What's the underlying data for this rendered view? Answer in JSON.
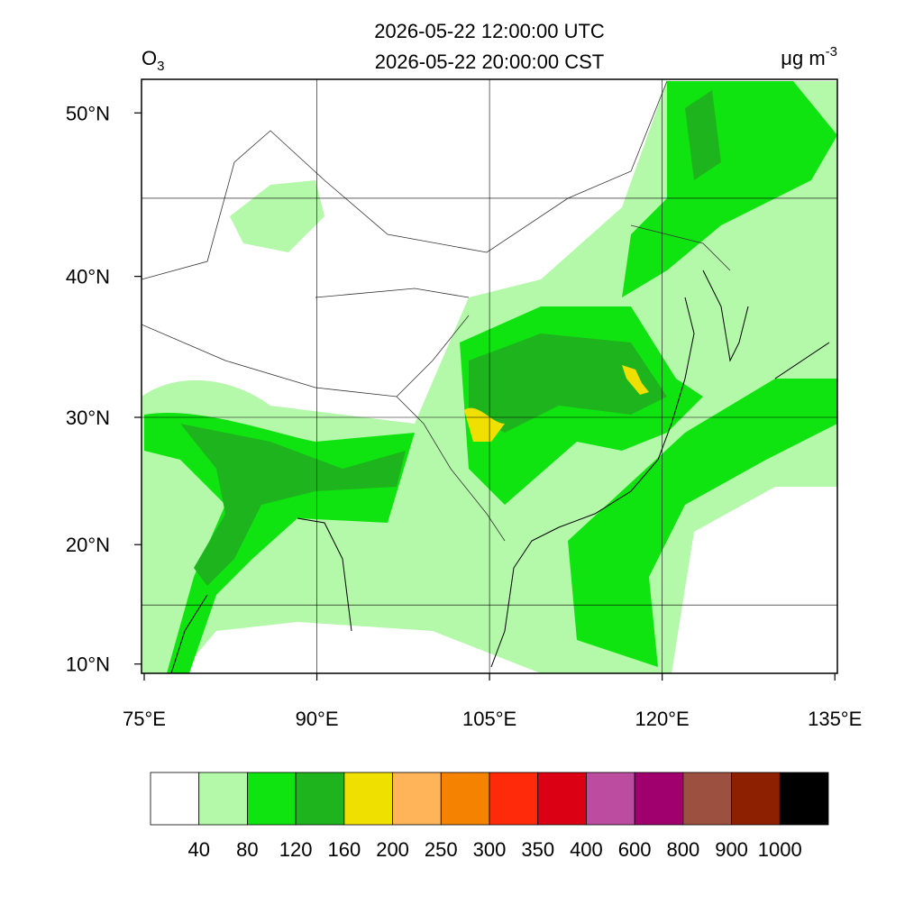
{
  "header": {
    "title_lines": [
      "2026-05-22 12:00:00 UTC",
      "2026-05-22 20:00:00 CST"
    ],
    "variable": {
      "symbol": "O",
      "subscript": "3"
    },
    "units": {
      "text": "μg m",
      "superscript": "-3"
    }
  },
  "map": {
    "lat_ticks": [
      {
        "value": 50,
        "label": "50°N"
      },
      {
        "value": 40,
        "label": "40°N"
      },
      {
        "value": 30,
        "label": "30°N"
      },
      {
        "value": 20,
        "label": "20°N"
      },
      {
        "value": 10,
        "label": "10°N"
      }
    ],
    "lon_ticks": [
      {
        "value": 75,
        "label": "75°E"
      },
      {
        "value": 90,
        "label": "90°E"
      },
      {
        "value": 105,
        "label": "105°E"
      },
      {
        "value": 120,
        "label": "120°E"
      },
      {
        "value": 135,
        "label": "135°E"
      }
    ],
    "grid": {
      "lat": [
        15,
        30,
        45
      ],
      "lon": [
        90,
        105,
        120
      ]
    }
  },
  "colorbar": {
    "colors": [
      "#ffffff",
      "#b4f8aa",
      "#10e410",
      "#1eb41e",
      "#f0e000",
      "#ffb45a",
      "#f58200",
      "#ff2a0a",
      "#dc0014",
      "#bc4ca0",
      "#a0006e",
      "#9c5040",
      "#8c2000",
      "#000000"
    ],
    "levels": [
      40,
      80,
      120,
      160,
      200,
      250,
      300,
      350,
      400,
      600,
      800,
      900,
      1000
    ]
  }
}
